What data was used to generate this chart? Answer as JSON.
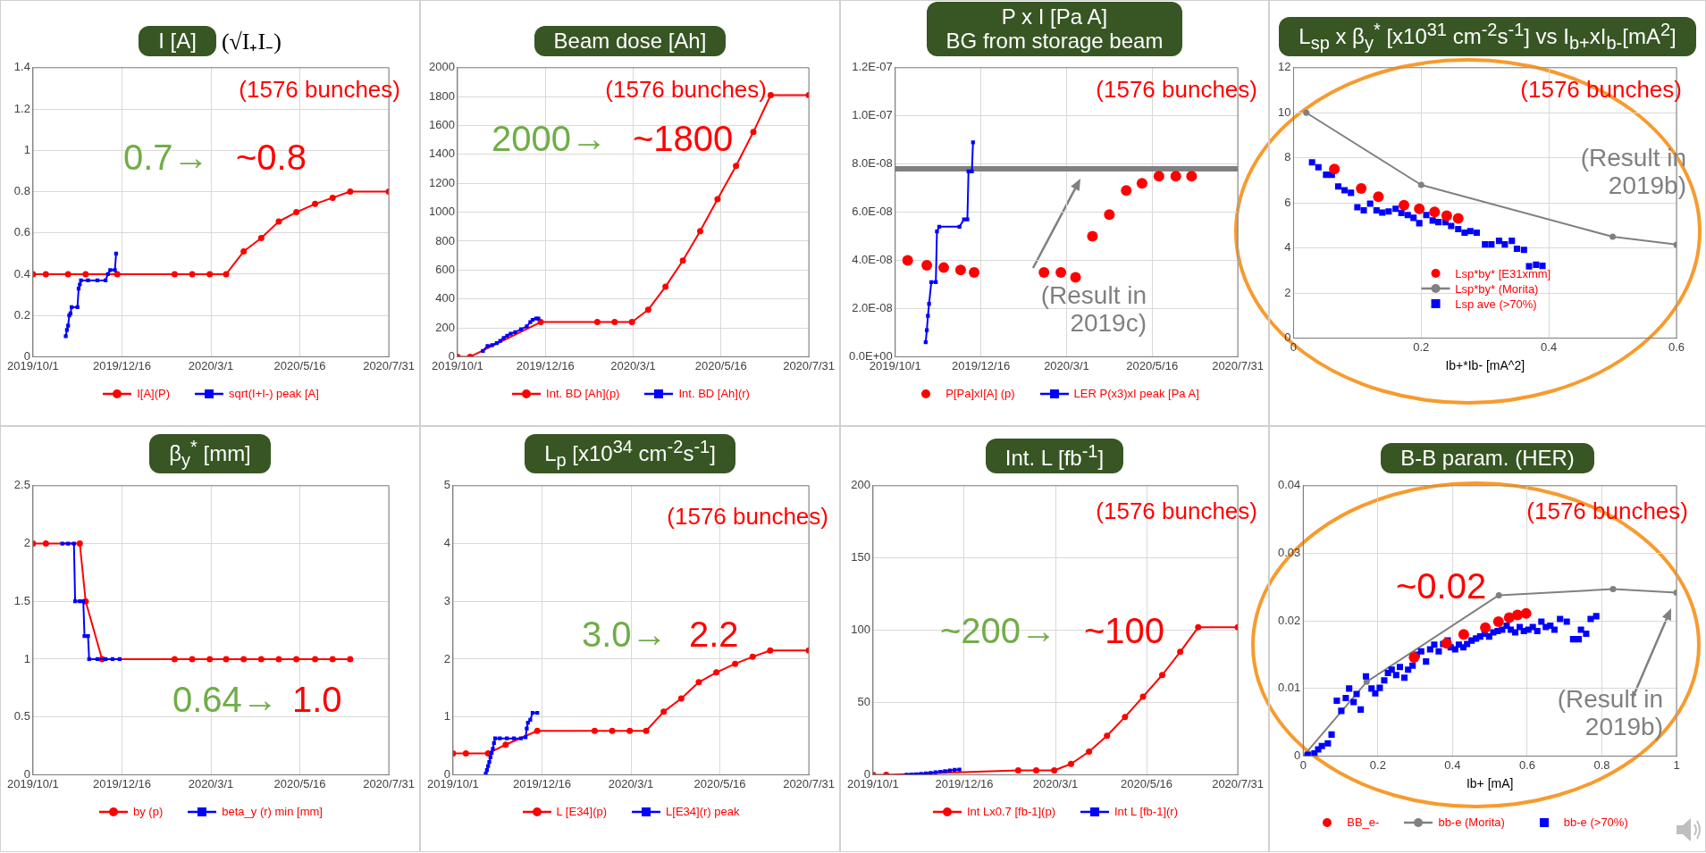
{
  "chart_data": [
    {
      "type": "line",
      "title": "I [A]",
      "subtitle": "(√I₊I₋)",
      "xlim": [
        "2019-10-01",
        "2020-07-31"
      ],
      "xticks": [
        {
          "value": "2019-10-01",
          "label": "2019/10/1"
        },
        {
          "value": "2019-12-16",
          "label": "2019/12/16"
        },
        {
          "value": "2020-03-01",
          "label": "2020/3/1"
        },
        {
          "value": "2020-05-16",
          "label": "2020/5/16"
        },
        {
          "value": "2020-07-31",
          "label": "2020/7/31"
        }
      ],
      "ylim": [
        0,
        1.4
      ],
      "yticks": [
        0,
        0.2,
        0.4,
        0.6,
        0.8,
        1,
        1.2,
        1.4
      ],
      "grid": true,
      "legend": "bottom",
      "annotations": [
        "(1576 bunches)",
        "0.7→",
        "~0.8"
      ],
      "series": [
        {
          "name": "I[A](P)",
          "color": "#ff0000",
          "marker": "circle",
          "x": [
            "2019-10-01",
            "2019-10-12",
            "2019-10-31",
            "2019-11-15",
            "2019-12-12",
            "2020-01-30",
            "2020-02-14",
            "2020-02-29",
            "2020-03-14",
            "2020-03-29",
            "2020-04-13",
            "2020-04-28",
            "2020-05-13",
            "2020-05-29",
            "2020-06-13",
            "2020-06-28",
            "2020-07-31"
          ],
          "values": [
            0.4,
            0.4,
            0.4,
            0.4,
            0.4,
            0.4,
            0.4,
            0.4,
            0.4,
            0.51,
            0.575,
            0.655,
            0.7,
            0.74,
            0.77,
            0.8,
            0.8
          ]
        },
        {
          "name": "sqrt(I+I-) peak [A]",
          "color": "#0000ff",
          "marker": "square",
          "x": [
            "2019-10-29",
            "2019-10-30",
            "2019-10-31",
            "2019-11-01",
            "2019-11-02",
            "2019-11-03",
            "2019-11-08",
            "2019-11-09",
            "2019-11-10",
            "2019-11-11",
            "2019-11-17",
            "2019-11-25",
            "2019-12-02",
            "2019-12-04",
            "2019-12-06",
            "2019-12-10",
            "2019-12-11"
          ],
          "values": [
            0.1,
            0.13,
            0.15,
            0.2,
            0.21,
            0.24,
            0.24,
            0.33,
            0.35,
            0.37,
            0.37,
            0.37,
            0.37,
            0.4,
            0.42,
            0.42,
            0.5
          ]
        }
      ]
    },
    {
      "type": "line",
      "title": "Beam dose [Ah]",
      "xlim": [
        "2019-10-01",
        "2020-07-31"
      ],
      "xticks": [
        {
          "value": "2019-10-01",
          "label": "2019/10/1"
        },
        {
          "value": "2019-12-16",
          "label": "2019/12/16"
        },
        {
          "value": "2020-03-01",
          "label": "2020/3/1"
        },
        {
          "value": "2020-05-16",
          "label": "2020/5/16"
        },
        {
          "value": "2020-07-31",
          "label": "2020/7/31"
        }
      ],
      "ylim": [
        0,
        2000
      ],
      "yticks": [
        0,
        200,
        400,
        600,
        800,
        1000,
        1200,
        1400,
        1600,
        1800,
        2000
      ],
      "grid": true,
      "legend": "bottom",
      "annotations": [
        "(1576 bunches)",
        "2000→",
        "~1800"
      ],
      "series": [
        {
          "name": "Int. BD [Ah](p)",
          "color": "#ff0000",
          "marker": "circle",
          "x": [
            "2019-10-01",
            "2019-10-12",
            "2019-10-31",
            "2019-11-15",
            "2019-12-12",
            "2020-01-30",
            "2020-02-14",
            "2020-02-29",
            "2020-03-14",
            "2020-03-29",
            "2020-04-13",
            "2020-04-28",
            "2020-05-13",
            "2020-05-29",
            "2020-06-13",
            "2020-06-28",
            "2020-07-31"
          ],
          "values": [
            0,
            0,
            null,
            null,
            240,
            240,
            240,
            240,
            325,
            485,
            665,
            870,
            1090,
            1320,
            1555,
            1810,
            1810
          ]
        },
        {
          "name": "Int. BD [Ah](r)",
          "color": "#0000ff",
          "marker": "square",
          "x": [
            "2019-10-23",
            "2019-10-27",
            "2019-10-31",
            "2019-11-04",
            "2019-11-07",
            "2019-11-10",
            "2019-11-13",
            "2019-11-16",
            "2019-11-20",
            "2019-11-25",
            "2019-11-30",
            "2019-12-03",
            "2019-12-05",
            "2019-12-08",
            "2019-12-10"
          ],
          "values": [
            40,
            75,
            80,
            95,
            110,
            130,
            145,
            160,
            170,
            190,
            210,
            240,
            255,
            265,
            265
          ]
        }
      ]
    },
    {
      "type": "line",
      "title": "P x I [Pa A]",
      "subtitle": "BG from storage beam",
      "xlim": [
        "2019-10-01",
        "2020-07-31"
      ],
      "xticks": [
        {
          "value": "2019-10-01",
          "label": "2019/10/1"
        },
        {
          "value": "2019-12-16",
          "label": "2019/12/16"
        },
        {
          "value": "2020-03-01",
          "label": "2020/3/1"
        },
        {
          "value": "2020-05-16",
          "label": "2020/5/16"
        },
        {
          "value": "2020-07-31",
          "label": "2020/7/31"
        }
      ],
      "ylim": [
        0,
        1.2e-07
      ],
      "yticks": [
        {
          "value": 0,
          "label": "0.0E+00"
        },
        {
          "value": 2e-08,
          "label": "2.0E-08"
        },
        {
          "value": 4e-08,
          "label": "4.0E-08"
        },
        {
          "value": 6e-08,
          "label": "6.0E-08"
        },
        {
          "value": 8e-08,
          "label": "8.0E-08"
        },
        {
          "value": 1e-07,
          "label": "1.0E-07"
        },
        {
          "value": 1.2e-07,
          "label": "1.2E-07"
        }
      ],
      "grid": true,
      "legend": "bottom",
      "annotations": [
        "(1576 bunches)",
        "(Result in 2019c)"
      ],
      "ref_lines": [
        {
          "axis": "y",
          "value": 7.8e-08,
          "color": "#808080"
        }
      ],
      "series": [
        {
          "name": "P[Pa]xI[A] (p)",
          "color": "#ff0000",
          "type": "scatter",
          "marker": "circle",
          "x": [
            "2019-10-12",
            "2019-10-29",
            "2019-11-13",
            "2019-11-28",
            "2019-12-10",
            "2020-02-10",
            "2020-02-25",
            "2020-03-09",
            "2020-03-24",
            "2020-04-08",
            "2020-04-23",
            "2020-05-07",
            "2020-05-22",
            "2020-06-06",
            "2020-06-20"
          ],
          "values": [
            4e-08,
            3.8e-08,
            3.7e-08,
            3.6e-08,
            3.5e-08,
            3.5e-08,
            3.5e-08,
            3.3e-08,
            5e-08,
            5.9e-08,
            6.9e-08,
            7.2e-08,
            7.5e-08,
            7.5e-08,
            7.5e-08
          ]
        },
        {
          "name": "LER P(x3)xI peak [Pa A]",
          "color": "#0000ff",
          "marker": "square",
          "x": [
            "2019-10-28",
            "2019-10-29",
            "2019-10-30",
            "2019-10-31",
            "2019-11-02",
            "2019-11-06",
            "2019-11-07",
            "2019-11-09",
            "2019-11-27",
            "2019-12-01",
            "2019-12-04",
            "2019-12-05",
            "2019-12-08",
            "2019-12-09"
          ],
          "values": [
            6e-09,
            1.1e-08,
            1.7e-08,
            2.2e-08,
            3.1e-08,
            3.1e-08,
            5.2e-08,
            5.4e-08,
            5.4e-08,
            5.7e-08,
            5.7e-08,
            7.7e-08,
            7.7e-08,
            8.9e-08
          ]
        }
      ]
    },
    {
      "type": "scatter",
      "title": "L$_{sp}$ x β$_{y}$$^{*}$ [x10$^{31}$ cm$^{-2}$s$^{-1}$] vs I$_{b+}$xI$_{b-}$[mA$^{2}$]",
      "xlabel": "Ib+*Ib- [mA^2]",
      "xlim": [
        0,
        0.6
      ],
      "xticks": [
        0,
        0.2,
        0.4,
        0.6
      ],
      "ylim": [
        0,
        12
      ],
      "yticks": [
        0,
        2,
        4,
        6,
        8,
        10,
        12
      ],
      "grid": true,
      "legend": "lower center",
      "annotations": [
        "(1576 bunches)",
        "(Result in 2019b)"
      ],
      "series": [
        {
          "name": "Lsp*by* [E31xmm]",
          "color": "#ff0000",
          "marker": "circle",
          "x": [
            0.064,
            0.106,
            0.133,
            0.173,
            0.197,
            0.221,
            0.24,
            0.258
          ],
          "values": [
            7.5,
            6.64,
            6.28,
            5.9,
            5.74,
            5.6,
            5.43,
            5.31
          ]
        },
        {
          "name": "Lsp*by* (Morita)",
          "color": "#808080",
          "type": "line",
          "marker": "circle",
          "x": [
            0.02,
            0.2,
            0.5,
            0.6
          ],
          "values": [
            10,
            6.8,
            4.5,
            4.15
          ]
        },
        {
          "name": "Lsp ave (>70%)",
          "color": "#0000ff",
          "marker": "square",
          "x": [
            0.029,
            0.039,
            0.051,
            0.06,
            0.07,
            0.08,
            0.09,
            0.1,
            0.11,
            0.12,
            0.13,
            0.139,
            0.149,
            0.16,
            0.169,
            0.179,
            0.188,
            0.197,
            0.208,
            0.218,
            0.227,
            0.238,
            0.247,
            0.258,
            0.268,
            0.277,
            0.287,
            0.3,
            0.31,
            0.322,
            0.331,
            0.342,
            0.35,
            0.361,
            0.369,
            0.38,
            0.39
          ],
          "values": [
            7.8,
            7.58,
            7.25,
            7.25,
            6.73,
            6.56,
            6.45,
            5.81,
            5.67,
            5.97,
            5.67,
            5.57,
            5.62,
            5.74,
            5.55,
            5.46,
            5.34,
            5.1,
            5.46,
            5.22,
            5.15,
            5.15,
            4.98,
            4.84,
            4.68,
            4.75,
            4.68,
            4.16,
            4.16,
            4.32,
            4.16,
            4.32,
            3.97,
            3.92,
            3.19,
            3.26,
            3.21
          ]
        }
      ]
    },
    {
      "type": "line",
      "title": "β$_{y}$$^{*}$ [mm]",
      "xlim": [
        "2019-10-01",
        "2020-07-31"
      ],
      "xticks": [
        {
          "value": "2019-10-01",
          "label": "2019/10/1"
        },
        {
          "value": "2019-12-16",
          "label": "2019/12/16"
        },
        {
          "value": "2020-03-01",
          "label": "2020/3/1"
        },
        {
          "value": "2020-05-16",
          "label": "2020/5/16"
        },
        {
          "value": "2020-07-31",
          "label": "2020/7/31"
        }
      ],
      "ylim": [
        0,
        2.5
      ],
      "yticks": [
        0,
        0.5,
        1,
        1.5,
        2,
        2.5
      ],
      "grid": true,
      "legend": "bottom",
      "annotations": [
        "0.64→",
        "1.0"
      ],
      "series": [
        {
          "name": "by (p)",
          "color": "#ff0000",
          "marker": "circle",
          "x": [
            "2019-10-01",
            "2019-10-12",
            "2019-11-10",
            "2019-11-15",
            "2019-11-29",
            "2020-01-30",
            "2020-02-14",
            "2020-02-29",
            "2020-03-14",
            "2020-03-29",
            "2020-04-13",
            "2020-04-28",
            "2020-05-13",
            "2020-05-29",
            "2020-06-13",
            "2020-06-28"
          ],
          "values": [
            2,
            2,
            2,
            1.5,
            1,
            1,
            1,
            1,
            1,
            1,
            1,
            1,
            1,
            1,
            1,
            1
          ]
        },
        {
          "name": "beta_y (r) min [mm]",
          "color": "#0000ff",
          "marker": "square",
          "x": [
            "2019-10-26",
            "2019-10-31",
            "2019-11-05",
            "2019-11-06",
            "2019-11-10",
            "2019-11-13",
            "2019-11-14",
            "2019-11-17",
            "2019-11-18",
            "2019-11-25",
            "2019-12-02",
            "2019-12-08",
            "2019-12-14"
          ],
          "values": [
            2,
            2,
            2,
            1.5,
            1.5,
            1.5,
            1.2,
            1.2,
            1,
            1,
            1,
            1,
            1
          ]
        }
      ]
    },
    {
      "type": "line",
      "title": "L$_{p}$ [x10$^{34}$ cm$^{-2}$s$^{-1}$]",
      "xlim": [
        "2019-10-01",
        "2020-07-31"
      ],
      "xticks": [
        {
          "value": "2019-10-01",
          "label": "2019/10/1"
        },
        {
          "value": "2019-12-16",
          "label": "2019/12/16"
        },
        {
          "value": "2020-03-01",
          "label": "2020/3/1"
        },
        {
          "value": "2020-05-16",
          "label": "2020/5/16"
        },
        {
          "value": "2020-07-31",
          "label": "2020/7/31"
        }
      ],
      "ylim": [
        0,
        5
      ],
      "yticks": [
        0,
        1,
        2,
        3,
        4,
        5
      ],
      "grid": true,
      "legend": "bottom",
      "annotations": [
        "(1576 bunches)",
        "3.0→",
        "2.2"
      ],
      "series": [
        {
          "name": "L [E34](p)",
          "color": "#ff0000",
          "marker": "circle",
          "x": [
            "2019-10-01",
            "2019-10-12",
            "2019-10-31",
            "2019-11-15",
            "2019-12-12",
            "2020-01-30",
            "2020-02-14",
            "2020-02-29",
            "2020-03-14",
            "2020-03-29",
            "2020-04-13",
            "2020-04-28",
            "2020-05-13",
            "2020-05-29",
            "2020-06-13",
            "2020-06-28",
            "2020-07-31"
          ],
          "values": [
            0.37,
            0.37,
            0.37,
            0.52,
            0.76,
            0.76,
            0.76,
            0.76,
            0.76,
            1.09,
            1.32,
            1.6,
            1.77,
            1.92,
            2.04,
            2.15,
            2.15
          ]
        },
        {
          "name": "L[E34](r) peak",
          "color": "#0000ff",
          "marker": "square",
          "x": [
            "2019-10-29",
            "2019-10-30",
            "2019-10-31",
            "2019-11-01",
            "2019-11-02",
            "2019-11-03",
            "2019-11-04",
            "2019-11-05",
            "2019-11-06",
            "2019-11-10",
            "2019-11-16",
            "2019-11-22",
            "2019-11-28",
            "2019-12-02",
            "2019-12-03",
            "2019-12-04",
            "2019-12-06",
            "2019-12-08",
            "2019-12-12"
          ],
          "values": [
            0.02,
            0.08,
            0.15,
            0.22,
            0.3,
            0.38,
            0.45,
            0.55,
            0.63,
            0.63,
            0.63,
            0.63,
            0.63,
            0.65,
            0.8,
            0.9,
            0.95,
            1.07,
            1.07
          ]
        }
      ]
    },
    {
      "type": "line",
      "title": "Int. L [fb$^{-1}$]",
      "xlim": [
        "2019-10-01",
        "2020-07-31"
      ],
      "xticks": [
        {
          "value": "2019-10-01",
          "label": "2019/10/1"
        },
        {
          "value": "2019-12-16",
          "label": "2019/12/16"
        },
        {
          "value": "2020-03-01",
          "label": "2020/3/1"
        },
        {
          "value": "2020-05-16",
          "label": "2020/5/16"
        },
        {
          "value": "2020-07-31",
          "label": "2020/7/31"
        }
      ],
      "ylim": [
        0,
        200
      ],
      "yticks": [
        0,
        50,
        100,
        150,
        200
      ],
      "grid": true,
      "legend": "bottom",
      "annotations": [
        "(1576 bunches)",
        "~200→",
        "~100"
      ],
      "series": [
        {
          "name": "Int Lx0.7 [fb-1](p)",
          "color": "#ff0000",
          "marker": "circle",
          "x": [
            "2019-10-01",
            "2019-10-12",
            "2019-10-31",
            "2019-11-15",
            "2019-12-12",
            "2020-01-30",
            "2020-02-14",
            "2020-02-29",
            "2020-03-14",
            "2020-03-29",
            "2020-04-13",
            "2020-04-28",
            "2020-05-13",
            "2020-05-29",
            "2020-06-13",
            "2020-06-28",
            "2020-07-31"
          ],
          "values": [
            0,
            0,
            null,
            null,
            null,
            3,
            3,
            3,
            7.5,
            16,
            27,
            40,
            54,
            69,
            85,
            102,
            102
          ]
        },
        {
          "name": "Int L [fb-1](r)",
          "color": "#0000ff",
          "marker": "square",
          "x": [
            "2019-10-29",
            "2019-11-02",
            "2019-11-06",
            "2019-11-10",
            "2019-11-14",
            "2019-11-18",
            "2019-11-22",
            "2019-11-26",
            "2019-11-30",
            "2019-12-04",
            "2019-12-08",
            "2019-12-12"
          ],
          "values": [
            0,
            0.2,
            0.4,
            0.7,
            1,
            1.3,
            1.7,
            2.1,
            2.5,
            3,
            3.4,
            3.6
          ]
        }
      ]
    },
    {
      "type": "scatter",
      "title": "B-B param. (HER)",
      "xlabel": "Ib+ [mA]",
      "xlim": [
        0,
        1
      ],
      "xticks": [
        0,
        0.2,
        0.4,
        0.6,
        0.8,
        1
      ],
      "ylim": [
        0,
        0.04
      ],
      "yticks": [
        0,
        0.01,
        0.02,
        0.03,
        0.04
      ],
      "grid": true,
      "legend": "bottom",
      "annotations": [
        "(1576 bunches)",
        "~0.02",
        "(Result in 2019b)"
      ],
      "series": [
        {
          "name": "BB_e-",
          "color": "#ff0000",
          "marker": "circle",
          "x": [
            0.297,
            0.384,
            0.43,
            0.488,
            0.523,
            0.552,
            0.574,
            0.597
          ],
          "values": [
            0.0146,
            0.0167,
            0.018,
            0.019,
            0.0199,
            0.0205,
            0.0209,
            0.0211
          ]
        },
        {
          "name": "bb-e (Morita)",
          "color": "#808080",
          "type": "line",
          "marker": "circle",
          "x": [
            0,
            0.17,
            0.524,
            0.83,
            1
          ],
          "values": [
            0,
            0.011,
            0.0238,
            0.0247,
            0.0242
          ]
        },
        {
          "name": "bb-e (>70%)",
          "color": "#0000ff",
          "marker": "square",
          "x": [
            0.012,
            0.03,
            0.04,
            0.05,
            0.066,
            0.076,
            0.09,
            0.102,
            0.114,
            0.123,
            0.135,
            0.143,
            0.154,
            0.168,
            0.183,
            0.193,
            0.205,
            0.217,
            0.227,
            0.237,
            0.249,
            0.259,
            0.271,
            0.281,
            0.293,
            0.304,
            0.316,
            0.329,
            0.34,
            0.351,
            0.363,
            0.375,
            0.387,
            0.395,
            0.407,
            0.417,
            0.429,
            0.439,
            0.451,
            0.463,
            0.474,
            0.486,
            0.498,
            0.509,
            0.521,
            0.533,
            0.545,
            0.556,
            0.568,
            0.58,
            0.591,
            0.603,
            0.615,
            0.627,
            0.638,
            0.65,
            0.662,
            0.673,
            0.688,
            0.706,
            0.723,
            0.738,
            0.744,
            0.758,
            0.77,
            0.785
          ],
          "values": [
            0.0002,
            0.0004,
            0.001,
            0.0015,
            0.0019,
            0.0032,
            0.0082,
            0.0067,
            0.0086,
            0.01,
            0.008,
            0.0092,
            0.0069,
            0.0118,
            0.01,
            0.0093,
            0.0101,
            0.0112,
            0.0123,
            0.0128,
            0.012,
            0.0132,
            0.0116,
            0.0128,
            0.0134,
            0.015,
            0.0155,
            0.014,
            0.0158,
            0.0165,
            0.0155,
            0.0166,
            0.0171,
            0.0161,
            0.0158,
            0.0165,
            0.0161,
            0.0166,
            0.0171,
            0.0174,
            0.0177,
            0.0181,
            0.0177,
            0.0183,
            0.0185,
            0.0187,
            0.0193,
            0.0187,
            0.0183,
            0.0191,
            0.0185,
            0.0187,
            0.0191,
            0.0185,
            0.0199,
            0.0191,
            0.0193,
            0.0187,
            0.0203,
            0.0199,
            0.0173,
            0.0173,
            0.0187,
            0.0181,
            0.0203,
            0.0207
          ]
        }
      ]
    }
  ]
}
